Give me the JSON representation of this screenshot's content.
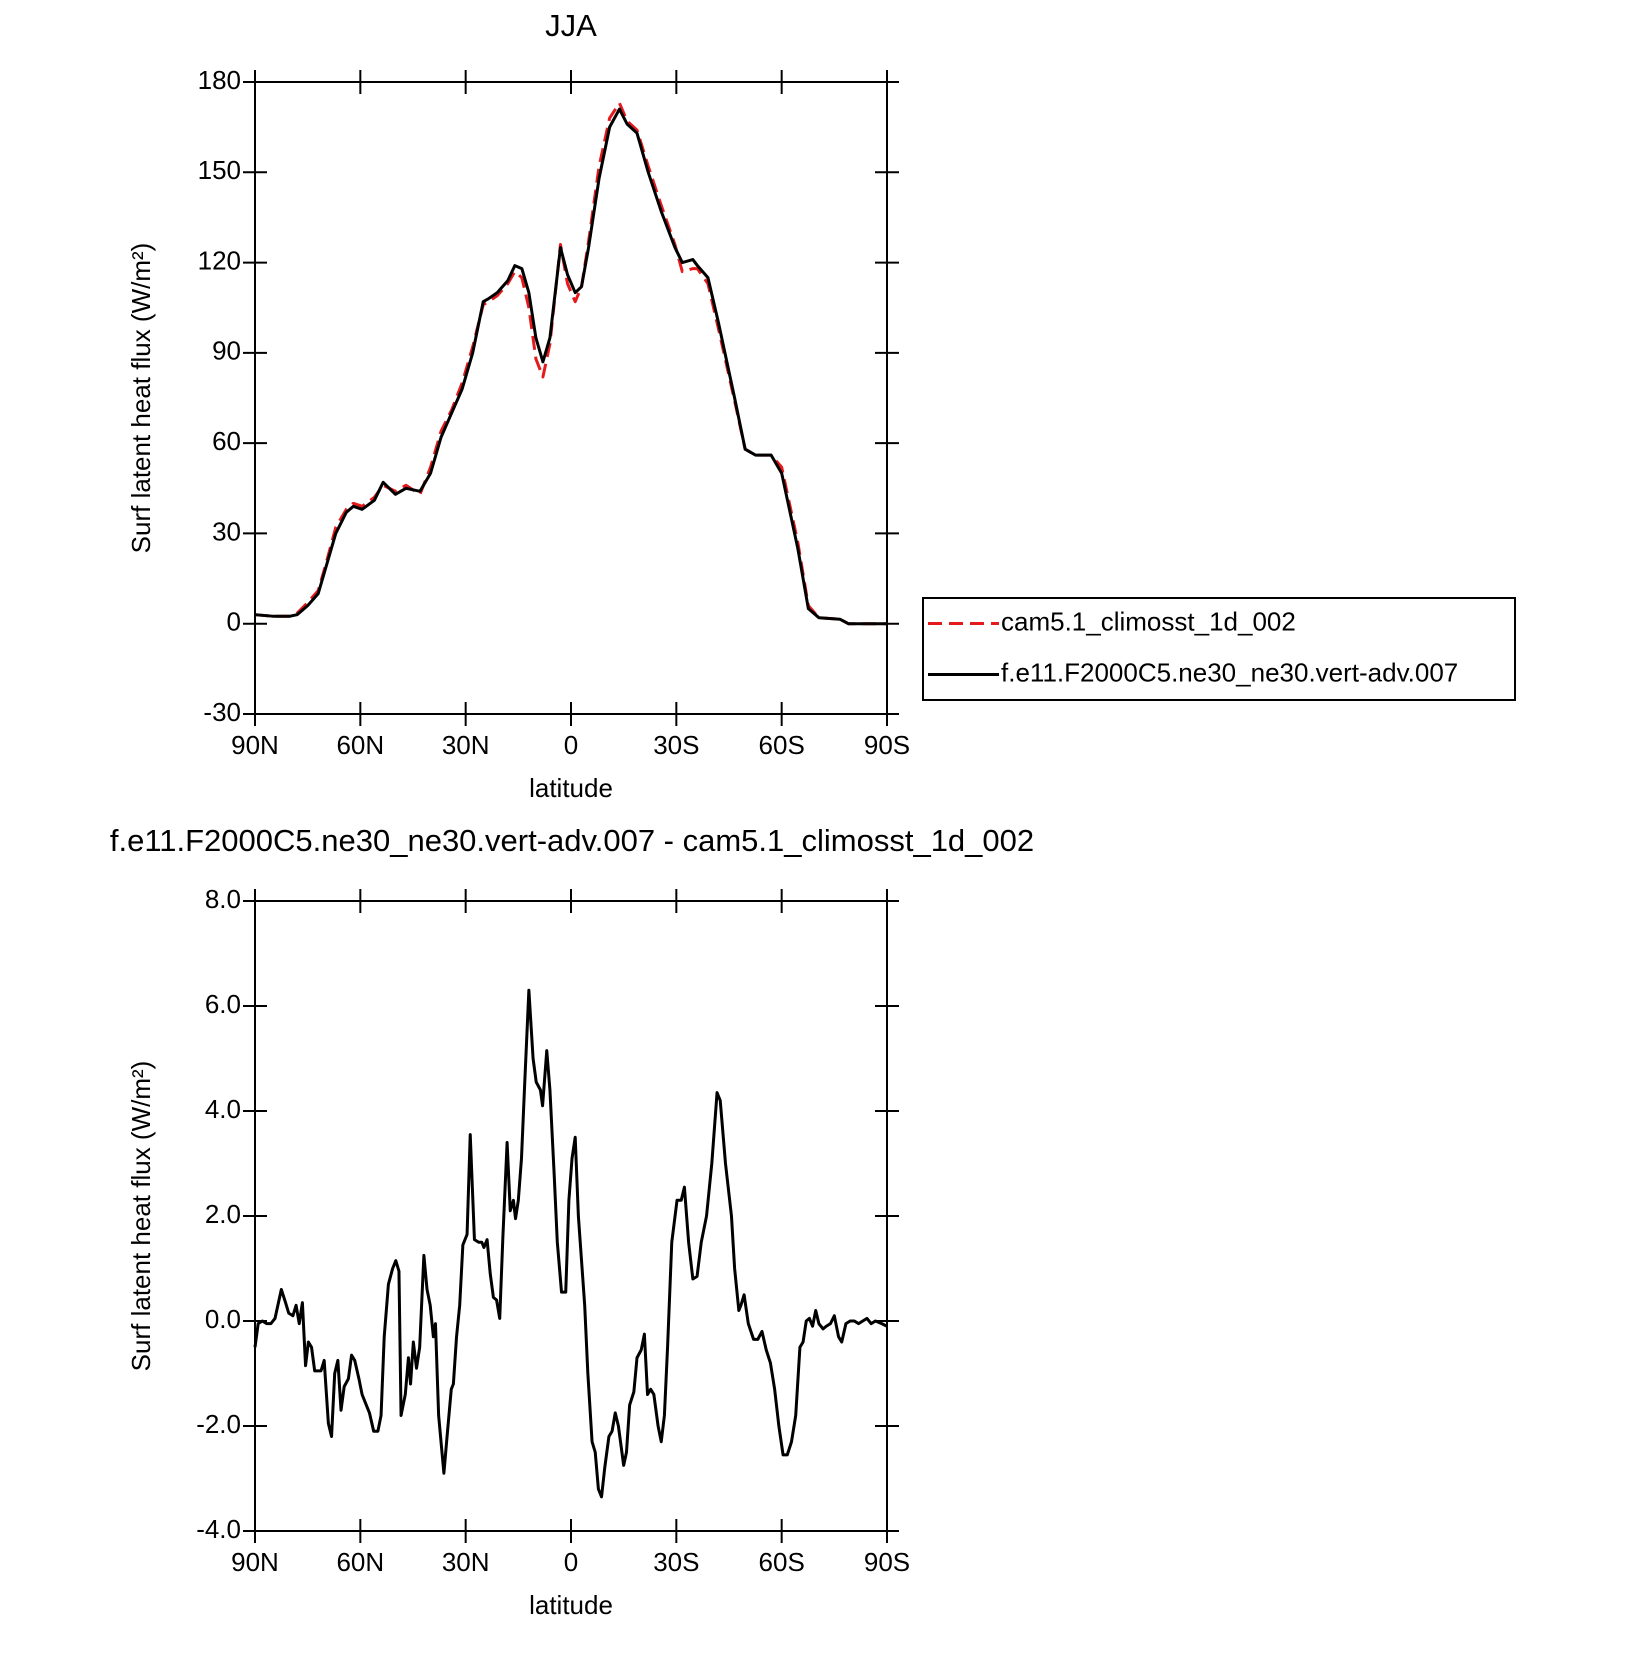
{
  "chart_data": [
    {
      "type": "line",
      "title": "JJA",
      "x_label": "latitude",
      "y_label": "Surf latent heat flux (W/m²)",
      "x": [
        90,
        85,
        80,
        78,
        75,
        72,
        70,
        67,
        64,
        62,
        59.5,
        56,
        53.5,
        50,
        47,
        43,
        40,
        37,
        34,
        31,
        28,
        25,
        23.5,
        21,
        18,
        16,
        14,
        12,
        10,
        8,
        6,
        3,
        1,
        -1.2,
        -3,
        -5,
        -8,
        -11,
        -13.8,
        -16,
        -18.8,
        -22,
        -25.7,
        -29.6,
        -31.7,
        -34.7,
        -36,
        -39,
        -42,
        -46.6,
        -49.6,
        -52.6,
        -57,
        -60,
        -64.6,
        -67.6,
        -70.6,
        -76.6,
        -79,
        -85,
        -90
      ],
      "series": [
        {
          "name": "cam5.1_climosst_1d_002",
          "color": "#e41a1c",
          "line_style": "dashed",
          "values": [
            3,
            2.5,
            2.5,
            3.5,
            7,
            11,
            19,
            32,
            38,
            40,
            39,
            42,
            46,
            44,
            46,
            43,
            52,
            64,
            71,
            80,
            92,
            106,
            107,
            109,
            113,
            117,
            115,
            105,
            88,
            82,
            93,
            126,
            113,
            107,
            112,
            127,
            152,
            168,
            173,
            167,
            164,
            152,
            139,
            126,
            117,
            118,
            118,
            113,
            98,
            74,
            58,
            56,
            56,
            52,
            27,
            6,
            2,
            1.5,
            0,
            0,
            0
          ]
        },
        {
          "name": "f.e11.F2000C5.ne30_ne30.vert-adv.007",
          "color": "#000000",
          "line_style": "solid",
          "values": [
            3,
            2.5,
            2.5,
            3,
            6,
            10,
            18,
            30,
            37,
            39,
            38,
            41,
            47,
            43,
            45,
            44,
            50,
            62,
            70,
            78,
            90,
            107,
            108,
            110,
            114,
            119,
            118,
            110,
            95,
            87,
            95,
            125,
            116,
            110,
            112,
            125,
            148,
            165,
            171,
            166,
            163,
            150,
            137,
            125,
            120,
            121,
            119,
            115,
            100,
            75,
            58,
            56,
            56,
            50,
            25,
            5,
            2,
            1.5,
            0,
            0,
            0
          ]
        }
      ],
      "xlim": [
        90,
        -90
      ],
      "xticks": [
        {
          "value": 90,
          "label": "90N"
        },
        {
          "value": 60,
          "label": "60N"
        },
        {
          "value": 30,
          "label": "30N"
        },
        0,
        {
          "value": -30,
          "label": "30S"
        },
        {
          "value": -60,
          "label": "60S"
        },
        {
          "value": -90,
          "label": "90S"
        }
      ],
      "ylim": [
        -30,
        180
      ],
      "yticks": [
        -30,
        0,
        30,
        60,
        90,
        120,
        150,
        180
      ],
      "grid": false
    },
    {
      "type": "line",
      "title": "f.e11.F2000C5.ne30_ne30.vert-adv.007 - cam5.1_climosst_1d_002",
      "x_label": "latitude",
      "y_label": "Surf latent heat flux (W/m²)",
      "x": [
        90,
        89.1,
        87.9,
        86.7,
        85.5,
        84.3,
        82.5,
        81.3,
        80.4,
        79.2,
        78.3,
        77.4,
        76.5,
        75.6,
        74.8,
        73.9,
        73.0,
        71.2,
        70.3,
        69.1,
        68.2,
        67.3,
        66.4,
        65.5,
        64.6,
        63.4,
        62.5,
        61.6,
        60.4,
        59.5,
        58.6,
        57.4,
        56.2,
        55.0,
        54.1,
        53.2,
        52.0,
        50.8,
        49.9,
        49.0,
        48.4,
        47.2,
        46.3,
        45.7,
        44.9,
        44.0,
        43.1,
        41.9,
        41.0,
        40.1,
        39.2,
        38.6,
        37.7,
        36.2,
        35.3,
        34.1,
        33.5,
        32.6,
        31.7,
        30.8,
        29.6,
        28.7,
        27.5,
        26.3,
        25.4,
        24.8,
        23.9,
        23.0,
        22.1,
        21.2,
        20.3,
        19.4,
        18.2,
        17.3,
        16.4,
        15.8,
        15.0,
        14.1,
        13.2,
        12.0,
        10.8,
        9.9,
        8.7,
        8.1,
        6.9,
        6.0,
        4.8,
        3.9,
        2.7,
        1.5,
        0.6,
        -0.3,
        -1.2,
        -2.1,
        -3.9,
        -4.8,
        -6.0,
        -6.9,
        -7.8,
        -8.7,
        -9.6,
        -10.8,
        -11.7,
        -12.6,
        -13.5,
        -15.0,
        -15.8,
        -16.7,
        -17.9,
        -18.8,
        -20.0,
        -20.9,
        -21.8,
        -22.7,
        -23.6,
        -24.8,
        -25.7,
        -26.6,
        -27.5,
        -28.7,
        -30.2,
        -31.4,
        -32.3,
        -33.5,
        -34.7,
        -35.9,
        -37.1,
        -38.6,
        -40.1,
        -41.6,
        -42.5,
        -44.0,
        -45.7,
        -46.6,
        -47.8,
        -48.4,
        -49.3,
        -50.5,
        -52.0,
        -53.2,
        -54.4,
        -55.6,
        -56.8,
        -58.0,
        -59.2,
        -60.4,
        -61.6,
        -62.8,
        -64.0,
        -65.2,
        -66.1,
        -67.0,
        -67.9,
        -68.8,
        -69.7,
        -70.6,
        -71.8,
        -72.7,
        -73.9,
        -75.0,
        -76.2,
        -77.1,
        -78.3,
        -79.5,
        -80.7,
        -81.9,
        -83.1,
        -84.3,
        -85.5,
        -86.7,
        -88.5,
        -90.0
      ],
      "values": [
        -0.5,
        -0.05,
        0,
        -0.05,
        -0.05,
        0.05,
        0.6,
        0.35,
        0.15,
        0.1,
        0.3,
        -0.05,
        0.35,
        -0.85,
        -0.4,
        -0.5,
        -0.95,
        -0.95,
        -0.75,
        -1.95,
        -2.2,
        -1.0,
        -0.75,
        -1.7,
        -1.25,
        -1.1,
        -0.65,
        -0.75,
        -1.1,
        -1.4,
        -1.55,
        -1.75,
        -2.1,
        -2.1,
        -1.8,
        -0.3,
        0.7,
        1.0,
        1.15,
        0.95,
        -1.8,
        -1.4,
        -0.7,
        -1.2,
        -0.4,
        -0.9,
        -0.5,
        1.25,
        0.6,
        0.3,
        -0.3,
        -0.05,
        -1.8,
        -2.9,
        -2.2,
        -1.3,
        -1.2,
        -0.3,
        0.3,
        1.45,
        1.65,
        3.55,
        1.55,
        1.5,
        1.5,
        1.4,
        1.55,
        0.9,
        0.45,
        0.4,
        0.05,
        1.6,
        3.4,
        2.1,
        2.3,
        1.95,
        2.3,
        3.1,
        4.5,
        6.3,
        5.0,
        4.55,
        4.4,
        4.1,
        5.15,
        4.4,
        2.8,
        1.5,
        0.55,
        0.55,
        2.3,
        3.1,
        3.5,
        2.0,
        0.3,
        -1.0,
        -2.3,
        -2.5,
        -3.2,
        -3.35,
        -2.8,
        -2.2,
        -2.1,
        -1.75,
        -2.0,
        -2.75,
        -2.5,
        -1.6,
        -1.35,
        -0.7,
        -0.55,
        -0.25,
        -1.4,
        -1.3,
        -1.4,
        -2.0,
        -2.3,
        -1.8,
        -0.5,
        1.5,
        2.3,
        2.3,
        2.55,
        1.5,
        0.8,
        0.85,
        1.5,
        2.0,
        3.0,
        4.35,
        4.2,
        3.0,
        2.0,
        1.0,
        0.2,
        0.3,
        0.5,
        -0.05,
        -0.35,
        -0.35,
        -0.2,
        -0.55,
        -0.8,
        -1.3,
        -2.0,
        -2.55,
        -2.55,
        -2.3,
        -1.8,
        -0.5,
        -0.4,
        0.0,
        0.05,
        -0.1,
        0.2,
        -0.05,
        -0.15,
        -0.1,
        -0.05,
        0.1,
        -0.3,
        -0.4,
        -0.05,
        0,
        0,
        -0.05,
        0,
        0.05,
        -0.05,
        0,
        -0.05,
        -0.1
      ],
      "color": "#000000",
      "line_style": "solid",
      "xlim": [
        90,
        -90
      ],
      "xticks": [
        {
          "value": 90,
          "label": "90N"
        },
        {
          "value": 60,
          "label": "60N"
        },
        {
          "value": 30,
          "label": "30N"
        },
        0,
        {
          "value": -30,
          "label": "30S"
        },
        {
          "value": -60,
          "label": "60S"
        },
        {
          "value": -90,
          "label": "90S"
        }
      ],
      "ylim": [
        -4,
        8
      ],
      "yticks": [
        {
          "value": -4,
          "label": "-4.0"
        },
        {
          "value": -2,
          "label": "-2.0"
        },
        {
          "value": 0,
          "label": "0.0"
        },
        {
          "value": 2,
          "label": "2.0"
        },
        {
          "value": 4,
          "label": "4.0"
        },
        {
          "value": 6,
          "label": "6.0"
        },
        {
          "value": 8,
          "label": "8.0"
        }
      ],
      "grid": false
    }
  ]
}
